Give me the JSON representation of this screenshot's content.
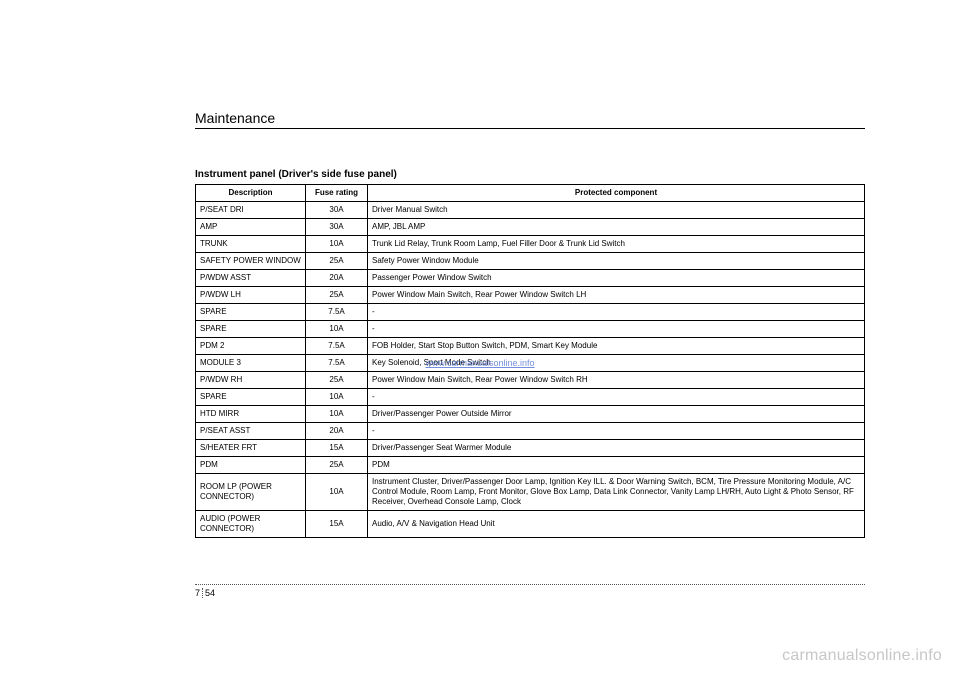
{
  "section_heading": "Maintenance",
  "table_title": "Instrument panel (Driver's side fuse panel)",
  "columns": [
    "Description",
    "Fuse rating",
    "Protected component"
  ],
  "rows": [
    {
      "desc": "P/SEAT DRI",
      "rating": "30A",
      "component": "Driver Manual Switch"
    },
    {
      "desc": "AMP",
      "rating": "30A",
      "component": "AMP, JBL AMP"
    },
    {
      "desc": "TRUNK",
      "rating": "10A",
      "component": "Trunk Lid Relay, Trunk Room Lamp, Fuel Filler Door & Trunk Lid Switch"
    },
    {
      "desc": "SAFETY POWER WINDOW",
      "rating": "25A",
      "component": "Safety Power Window Module"
    },
    {
      "desc": "P/WDW ASST",
      "rating": "20A",
      "component": "Passenger Power Window Switch"
    },
    {
      "desc": "P/WDW LH",
      "rating": "25A",
      "component": "Power Window Main Switch, Rear Power Window Switch LH"
    },
    {
      "desc": "SPARE",
      "rating": "7.5A",
      "component": "-"
    },
    {
      "desc": "SPARE",
      "rating": "10A",
      "component": "-"
    },
    {
      "desc": "PDM 2",
      "rating": "7.5A",
      "component": "FOB Holder, Start Stop Button Switch, PDM, Smart Key Module"
    },
    {
      "desc": "MODULE 3",
      "rating": "7.5A",
      "component": "Key Solenoid, Sport Mode Switch"
    },
    {
      "desc": "P/WDW RH",
      "rating": "25A",
      "component": "Power Window Main Switch, Rear Power Window Switch RH"
    },
    {
      "desc": "SPARE",
      "rating": "10A",
      "component": "-"
    },
    {
      "desc": "HTD MIRR",
      "rating": "10A",
      "component": "Driver/Passenger Power Outside Mirror"
    },
    {
      "desc": "P/SEAT ASST",
      "rating": "20A",
      "component": "-"
    },
    {
      "desc": "S/HEATER FRT",
      "rating": "15A",
      "component": "Driver/Passenger Seat Warmer Module"
    },
    {
      "desc": "PDM",
      "rating": "25A",
      "component": "PDM"
    },
    {
      "desc": "ROOM LP (POWER CONNECTOR)",
      "rating": "10A",
      "component": "Instrument Cluster, Driver/Passenger Door Lamp, Ignition Key ILL. & Door Warning Switch, BCM, Tire Pressure Monitoring Module, A/C Control Module, Room Lamp, Front Monitor, Glove Box Lamp, Data Link Connector, Vanity Lamp LH/RH, Auto Light & Photo Sensor, RF Receiver, Overhead Console Lamp, Clock"
    },
    {
      "desc": "AUDIO (POWER CONNECTOR)",
      "rating": "15A",
      "component": "Audio, A/V & Navigation Head Unit"
    }
  ],
  "footer": {
    "chapter": "7",
    "page": "54"
  },
  "brand": "carmanualsonline.info",
  "watermark_link": "www.carmanualsonline.info"
}
